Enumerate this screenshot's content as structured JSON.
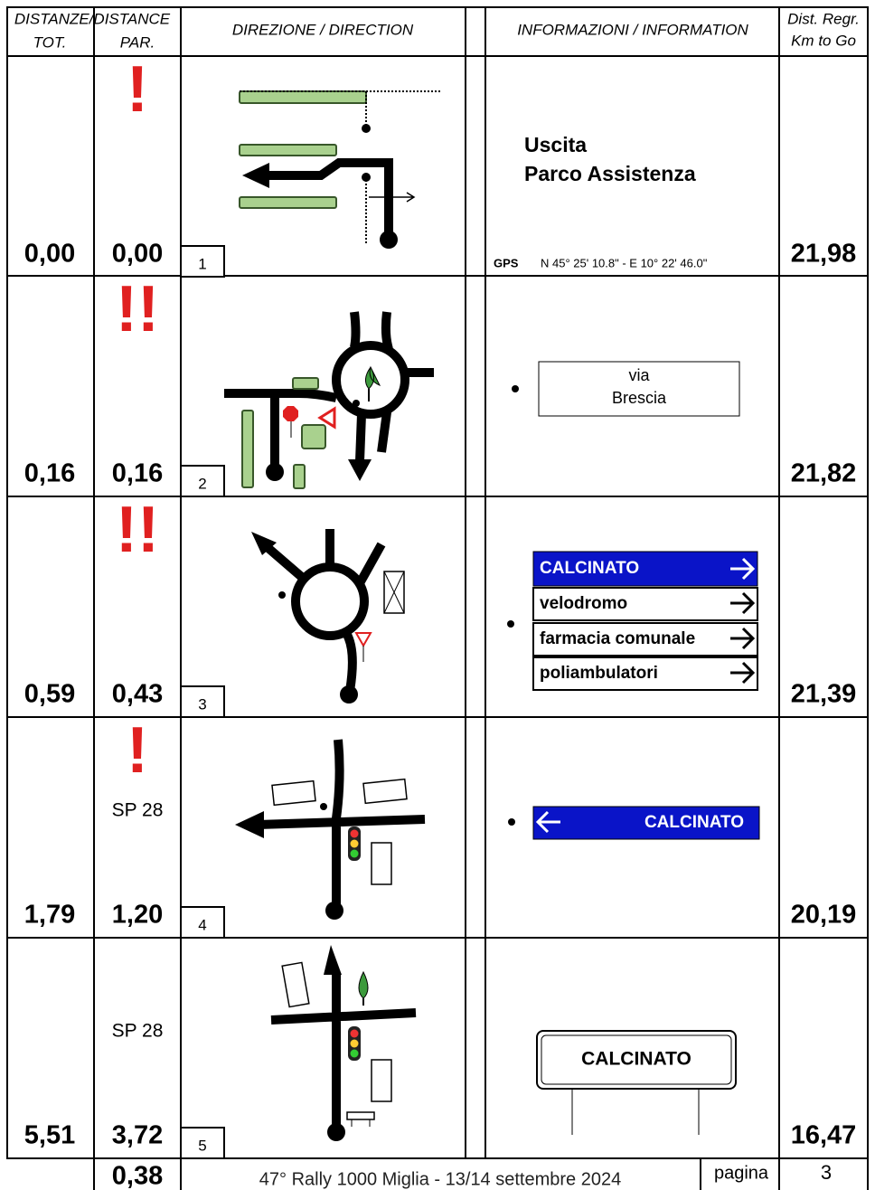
{
  "header": {
    "distance": "DISTANZE/DISTANCE",
    "tot": "TOT.",
    "par": "PAR.",
    "direction": "DIREZIONE / DIRECTION",
    "information": "INFORMAZIONI / INFORMATION",
    "km_line1": "Dist. Regr.",
    "km_line2": "Km to Go"
  },
  "rows": [
    {
      "tot": "0,00",
      "par": "0,00",
      "number": "1",
      "km_to_go": "21,98",
      "warning": "!",
      "info": {
        "lines": [
          "Uscita",
          "Parco Assistenza"
        ],
        "gps_label": "GPS",
        "gps": "N 45° 25' 10.8\" - E 10° 22' 46.0\""
      }
    },
    {
      "tot": "0,16",
      "par": "0,16",
      "number": "2",
      "km_to_go": "21,82",
      "warning": "!!",
      "info": {
        "box": [
          "via",
          "Brescia"
        ]
      }
    },
    {
      "tot": "0,59",
      "par": "0,43",
      "number": "3",
      "km_to_go": "21,39",
      "warning": "!!",
      "info": {
        "signs": [
          "CALCINATO",
          "velodromo",
          "farmacia comunale",
          "poliambulatori"
        ]
      }
    },
    {
      "tot": "1,79",
      "par": "1,20",
      "number": "4",
      "km_to_go": "20,19",
      "warning": "!",
      "road": "SP 28",
      "info": {
        "sign": "CALCINATO"
      }
    },
    {
      "tot": "5,51",
      "par": "3,72",
      "number": "5",
      "km_to_go": "16,47",
      "road": "SP 28",
      "info": {
        "town_sign": "CALCINATO"
      }
    }
  ],
  "footer": {
    "partial": "0,38",
    "event": "47° Rally 1000 Miglia - 13/14 settembre 2024",
    "page_label": "pagina",
    "page": "3"
  }
}
